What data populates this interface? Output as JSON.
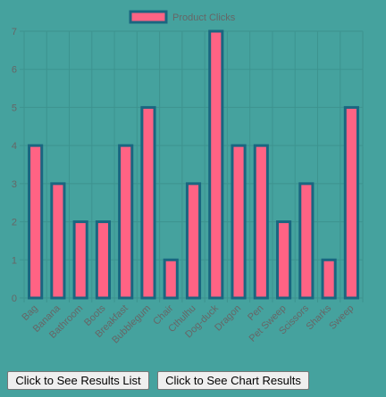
{
  "chart_data": {
    "type": "bar",
    "categories": [
      "Bag",
      "Banana",
      "Bathroom",
      "Boots",
      "Breakfast",
      "Bubblegum",
      "Chair",
      "Cthulhu",
      "Dog-duck",
      "Dragon",
      "Pen",
      "Pet Sweep",
      "Scissors",
      "Sharks",
      "Sweep"
    ],
    "series": [
      {
        "name": "Product Clicks",
        "values": [
          4,
          3,
          2,
          2,
          4,
          5,
          1,
          3,
          7,
          4,
          4,
          2,
          3,
          1,
          5
        ]
      }
    ],
    "y_ticks": [
      "0",
      "1",
      "2",
      "3",
      "4",
      "5",
      "6",
      "7"
    ],
    "ylim": [
      0,
      7
    ],
    "grid": true,
    "legend_position": "top",
    "colors": {
      "bar_fill": "#ff6384",
      "bar_border": "#1a6680",
      "text": "#666666",
      "grid": "#3d938f",
      "background": "#45a29e"
    }
  },
  "buttons": {
    "results_list": "Click to See Results List",
    "chart_results": "Click to See Chart Results"
  }
}
